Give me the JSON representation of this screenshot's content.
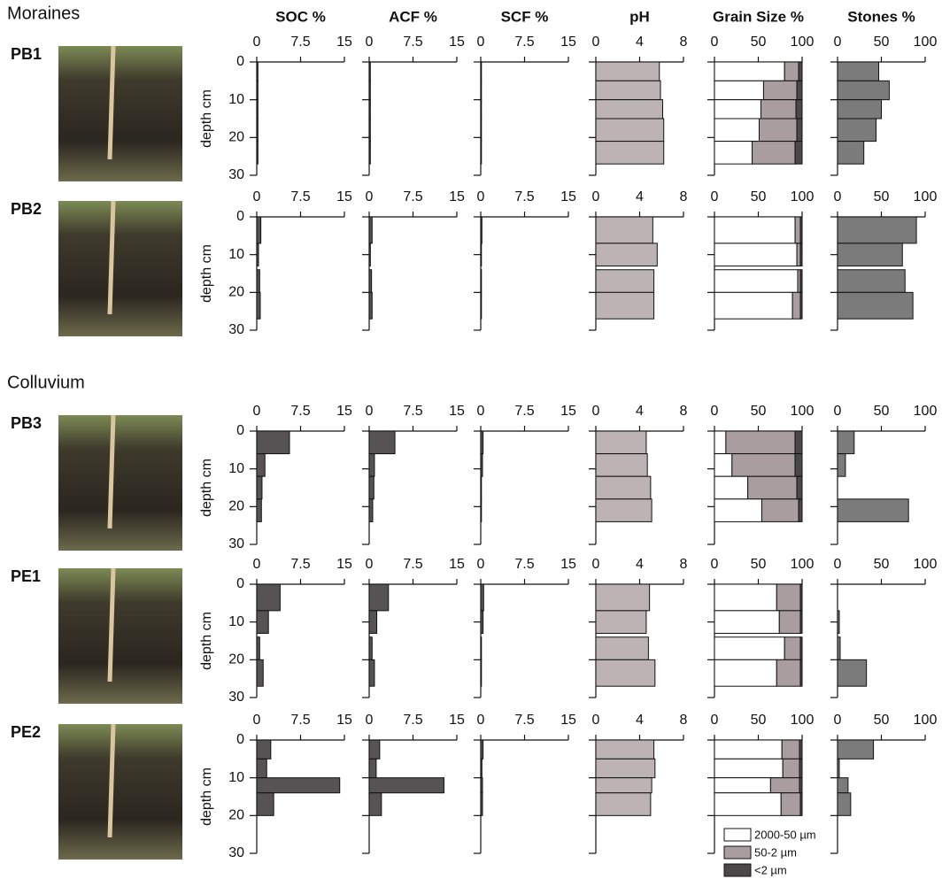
{
  "columns": [
    {
      "title": "SOC  %",
      "xlim": [
        0,
        15
      ],
      "xticks": [
        0,
        7.5,
        15
      ],
      "color": "#575354"
    },
    {
      "title": "ACF %",
      "xlim": [
        0,
        15
      ],
      "xticks": [
        0,
        7.5,
        15
      ],
      "color": "#575354"
    },
    {
      "title": "SCF %",
      "xlim": [
        0,
        15
      ],
      "xticks": [
        0,
        7.5,
        15
      ],
      "color": "#575354"
    },
    {
      "title": "pH",
      "xlim": [
        0,
        8
      ],
      "xticks": [
        0,
        4,
        8
      ],
      "color": "#bdb3b5"
    },
    {
      "title": "Grain Size %",
      "xlim": [
        0,
        100
      ],
      "xticks": [
        0,
        50,
        100
      ],
      "series": [
        {
          "name": "2000-50 µm",
          "color": "#ffffff"
        },
        {
          "name": "50-2 µm",
          "color": "#a99d9f"
        },
        {
          "name": "<2 µm",
          "color": "#4a4848"
        }
      ]
    },
    {
      "title": "Stones  %",
      "xlim": [
        0,
        100
      ],
      "xticks": [
        0,
        50,
        100
      ],
      "color": "#7b7b7b"
    }
  ],
  "depth_axis": {
    "label": "depth  cm",
    "ylim": [
      0,
      30
    ],
    "yticks": [
      0,
      10,
      20,
      30
    ]
  },
  "chart_data": [
    {
      "type": "depth-bar",
      "group": "Moraines",
      "title": "PB1",
      "depth_top": [
        0,
        5,
        10,
        15,
        21
      ],
      "depth_bottom": [
        5,
        10,
        15,
        21,
        27
      ],
      "soc": [
        0.2,
        0.2,
        0.2,
        0.2,
        0.2
      ],
      "acf": [
        0.2,
        0.2,
        0.2,
        0.2,
        0.2
      ],
      "scf": [
        0.05,
        0.05,
        0.05,
        0.05,
        0.05
      ],
      "ph": [
        5.8,
        5.9,
        6.1,
        6.2,
        6.2
      ],
      "sand": [
        80,
        56,
        53,
        51,
        43
      ],
      "silt": [
        16,
        38,
        40,
        43,
        49
      ],
      "clay": [
        4,
        6,
        7,
        6,
        8
      ],
      "stones": [
        47,
        59,
        50,
        44,
        30
      ]
    },
    {
      "type": "depth-bar",
      "title": "PB2",
      "depth_top": [
        0,
        7,
        14,
        20
      ],
      "depth_bottom": [
        7,
        13,
        20,
        27
      ],
      "soc": [
        0.7,
        0.3,
        0.5,
        0.6
      ],
      "acf": [
        0.5,
        0.2,
        0.4,
        0.5
      ],
      "scf": [
        0.2,
        0.05,
        0.05,
        0.05
      ],
      "ph": [
        5.2,
        5.6,
        5.3,
        5.3
      ],
      "sand": [
        92,
        94,
        95,
        89
      ],
      "silt": [
        6,
        4,
        3,
        9
      ],
      "clay": [
        2,
        2,
        2,
        2
      ],
      "stones": [
        90,
        74,
        77,
        86
      ]
    },
    {
      "type": "depth-bar",
      "group": "Colluvium",
      "title": "PB3",
      "depth_top": [
        0,
        6,
        12,
        18
      ],
      "depth_bottom": [
        6,
        12,
        18,
        24
      ],
      "soc": [
        5.6,
        1.4,
        0.9,
        0.8
      ],
      "acf": [
        4.4,
        0.9,
        0.8,
        0.6
      ],
      "scf": [
        0.4,
        0.3,
        0.1,
        0.1
      ],
      "ph": [
        4.6,
        4.7,
        5.0,
        5.1
      ],
      "sand": [
        13,
        20,
        38,
        54
      ],
      "silt": [
        79,
        72,
        56,
        42
      ],
      "clay": [
        8,
        8,
        6,
        4
      ],
      "stones": [
        19,
        9,
        null,
        81
      ]
    },
    {
      "type": "depth-bar",
      "title": "PE1",
      "depth_top": [
        0,
        7,
        14,
        20
      ],
      "depth_bottom": [
        7,
        13,
        20,
        27
      ],
      "soc": [
        4.0,
        2.0,
        0.5,
        1.1
      ],
      "acf": [
        3.3,
        1.3,
        0.5,
        0.9
      ],
      "scf": [
        0.5,
        0.4,
        0.1,
        0.1
      ],
      "ph": [
        4.9,
        4.6,
        4.8,
        5.4
      ],
      "sand": [
        71,
        74,
        80,
        71
      ],
      "silt": [
        27,
        24,
        18,
        27
      ],
      "clay": [
        2,
        2,
        2,
        2
      ],
      "stones": [
        null,
        2,
        3,
        33
      ]
    },
    {
      "type": "depth-bar",
      "title": "PE2",
      "depth_top": [
        0,
        5,
        10,
        14
      ],
      "depth_bottom": [
        5,
        10,
        14,
        20
      ],
      "soc": [
        2.4,
        1.7,
        14.2,
        2.9
      ],
      "acf": [
        1.8,
        1.2,
        12.8,
        2.1
      ],
      "scf": [
        0.4,
        0.2,
        0.3,
        0.3
      ],
      "ph": [
        5.3,
        5.4,
        5.1,
        5.0
      ],
      "sand": [
        77,
        78,
        64,
        76
      ],
      "silt": [
        20,
        19,
        33,
        22
      ],
      "clay": [
        3,
        3,
        3,
        2
      ],
      "stones": [
        41,
        2,
        12,
        15
      ]
    }
  ]
}
